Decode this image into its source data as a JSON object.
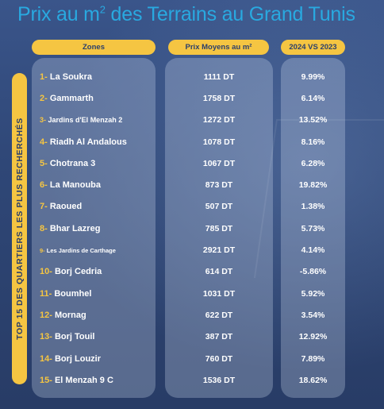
{
  "title": {
    "prefix": "Prix au m",
    "sup": "2",
    "suffix": " des Terrains au Grand Tunis"
  },
  "headers": {
    "zones": "Zones",
    "prix": "Prix Moyens au m²",
    "comparison": "2024 VS 2023"
  },
  "side_label": "TOP 15 DES QUARTIERS LES PLUS RECHERCHÉS",
  "rows": [
    {
      "num": "1-",
      "zone": "La Soukra",
      "price": "1111 DT",
      "change": "9.99%"
    },
    {
      "num": "2-",
      "zone": "Gammarth",
      "price": "1758 DT",
      "change": "6.14%"
    },
    {
      "num": "3-",
      "zone": "Jardins d'El Menzah 2",
      "price": "1272 DT",
      "change": "13.52%"
    },
    {
      "num": "4-",
      "zone": "Riadh Al Andalous",
      "price": "1078 DT",
      "change": "8.16%"
    },
    {
      "num": "5-",
      "zone": "Chotrana 3",
      "price": "1067 DT",
      "change": "6.28%"
    },
    {
      "num": "6-",
      "zone": "La Manouba",
      "price": "873 DT",
      "change": "19.82%"
    },
    {
      "num": "7-",
      "zone": "Raoued",
      "price": "507 DT",
      "change": "1.38%"
    },
    {
      "num": "8-",
      "zone": "Bhar Lazreg",
      "price": "785 DT",
      "change": "5.73%"
    },
    {
      "num": "9-",
      "zone": "Les Jardins de Carthage",
      "price": "2921 DT",
      "change": "4.14%"
    },
    {
      "num": "10-",
      "zone": "Borj Cedria",
      "price": "614 DT",
      "change": "-5.86%"
    },
    {
      "num": "11-",
      "zone": "Boumhel",
      "price": "1031 DT",
      "change": "5.92%"
    },
    {
      "num": "12-",
      "zone": "Mornag",
      "price": "622 DT",
      "change": "3.54%"
    },
    {
      "num": "13-",
      "zone": "Borj Touil",
      "price": "387 DT",
      "change": "12.92%"
    },
    {
      "num": "14-",
      "zone": "Borj Louzir",
      "price": "760 DT",
      "change": "7.89%"
    },
    {
      "num": "15-",
      "zone": "El Menzah 9 C",
      "price": "1536 DT",
      "change": "18.62%"
    }
  ]
}
